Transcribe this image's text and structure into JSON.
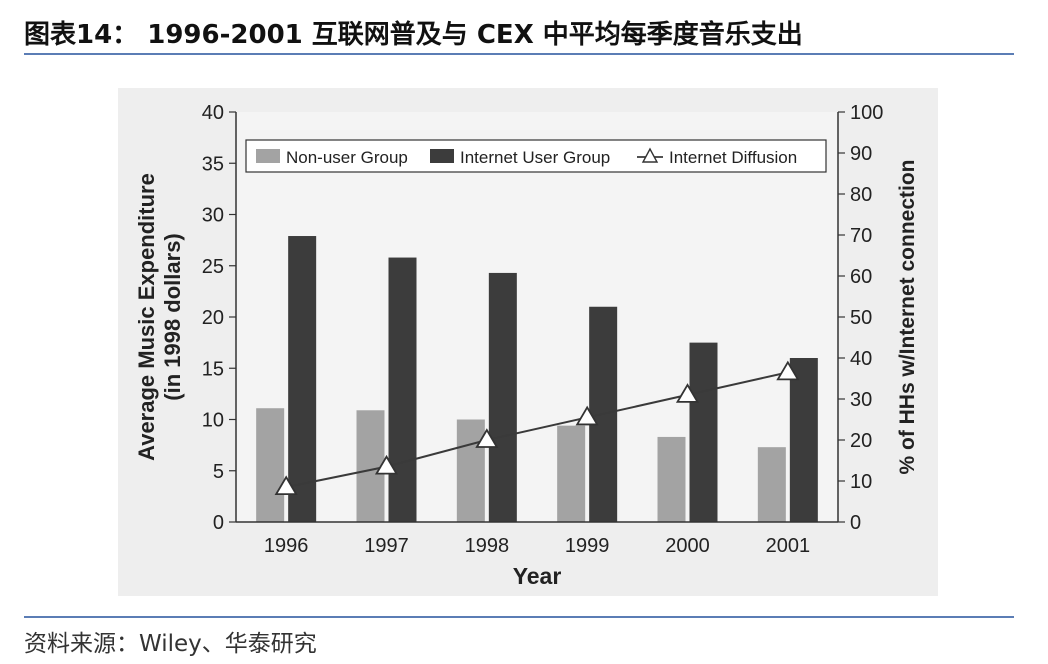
{
  "header": {
    "title": "图表14：  1996-2001 互联网普及与 CEX 中平均每季度音乐支出"
  },
  "footer": {
    "source": "资料来源：Wiley、华泰研究"
  },
  "colors": {
    "rule": "#5b7db5",
    "non_user": "#a3a3a3",
    "internet_user": "#3c3c3c",
    "diffusion_line": "#3a3a3a",
    "plot_background": "#eeeeee"
  },
  "chart_data": {
    "type": "bar",
    "categories": [
      "1996",
      "1997",
      "1998",
      "1999",
      "2000",
      "2001"
    ],
    "series": [
      {
        "name": "Non-user Group",
        "type": "bar",
        "axis": "left",
        "values": [
          11.1,
          10.9,
          10.0,
          9.4,
          8.3,
          7.3
        ]
      },
      {
        "name": "Internet User Group",
        "type": "bar",
        "axis": "left",
        "values": [
          27.9,
          25.8,
          24.3,
          21.0,
          17.5,
          16.0
        ]
      },
      {
        "name": "Internet Diffusion",
        "type": "line",
        "marker": "triangle",
        "axis": "right",
        "values": [
          8.5,
          13.5,
          20.0,
          25.5,
          31.0,
          36.5
        ]
      }
    ],
    "xlabel": "Year",
    "ylabel": "Average Music Expenditure\n(in 1998 dollars)",
    "ylabel_right": "% of HHs w/Internet connection",
    "ylim": [
      0,
      40
    ],
    "ylim_right": [
      0,
      100
    ],
    "yticks": [
      "0",
      "5",
      "10",
      "15",
      "20",
      "25",
      "30",
      "35",
      "40"
    ],
    "yticks_right": [
      "0",
      "10",
      "20",
      "30",
      "40",
      "50",
      "60",
      "70",
      "80",
      "90",
      "100"
    ],
    "legend_position": "top",
    "grid": false
  }
}
